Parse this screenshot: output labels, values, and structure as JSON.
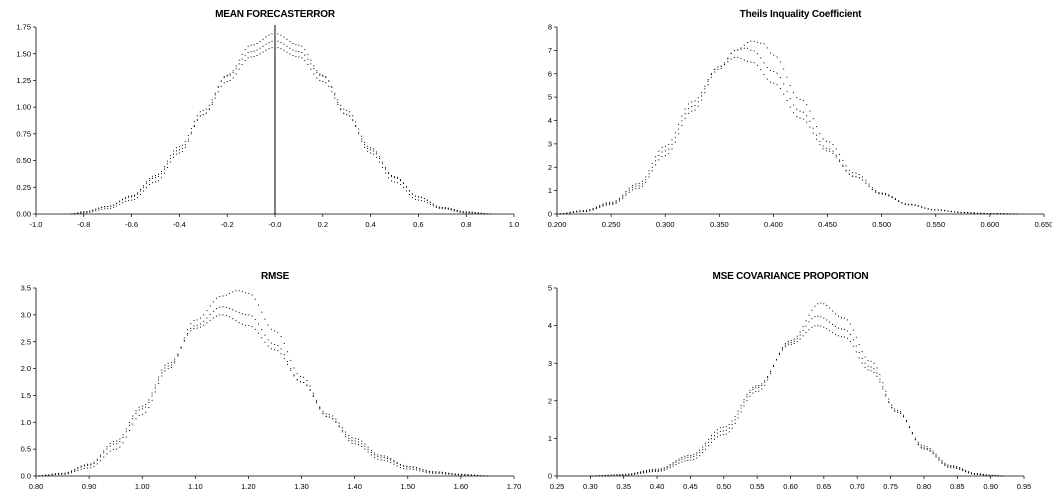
{
  "chart_data": [
    {
      "type": "line",
      "title": "MEAN FORECASTERROR",
      "xlabel": "",
      "ylabel": "",
      "xlim": [
        -1.0,
        1.0
      ],
      "ylim": [
        0,
        1.75
      ],
      "x_ticks": [
        "-1.0",
        "-0.8",
        "-0.6",
        "-0.4",
        "-0.2",
        "-0.0",
        "0.2",
        "0.4",
        "0.6",
        "0.8",
        "1.0"
      ],
      "x_tick_values": [
        -1.0,
        -0.8,
        -0.6,
        -0.4,
        -0.2,
        0.0,
        0.2,
        0.4,
        0.6,
        0.8,
        1.0
      ],
      "y_ticks": [
        "0.00",
        "0.25",
        "0.50",
        "0.75",
        "1.00",
        "1.25",
        "1.50",
        "1.75"
      ],
      "y_tick_values": [
        0,
        0.25,
        0.5,
        0.75,
        1.0,
        1.25,
        1.5,
        1.75
      ],
      "vline": 0.0,
      "line_style": "dotted",
      "series": [
        {
          "x": [
            -0.85,
            -0.8,
            -0.7,
            -0.6,
            -0.5,
            -0.4,
            -0.3,
            -0.2,
            -0.1,
            0.0,
            0.1,
            0.2,
            0.3,
            0.4,
            0.5,
            0.6,
            0.7,
            0.8,
            0.9
          ],
          "values": [
            0.0,
            0.02,
            0.07,
            0.16,
            0.34,
            0.6,
            0.93,
            1.24,
            1.47,
            1.56,
            1.47,
            1.24,
            0.93,
            0.6,
            0.34,
            0.16,
            0.06,
            0.02,
            0.0
          ]
        },
        {
          "x": [
            -0.85,
            -0.8,
            -0.7,
            -0.6,
            -0.5,
            -0.4,
            -0.3,
            -0.2,
            -0.1,
            0.0,
            0.1,
            0.2,
            0.3,
            0.4,
            0.5,
            0.6,
            0.7,
            0.8,
            0.9
          ],
          "values": [
            0.0,
            0.02,
            0.07,
            0.17,
            0.36,
            0.63,
            0.97,
            1.29,
            1.52,
            1.62,
            1.52,
            1.29,
            0.97,
            0.62,
            0.35,
            0.16,
            0.06,
            0.02,
            0.0
          ]
        },
        {
          "x": [
            -0.85,
            -0.8,
            -0.7,
            -0.6,
            -0.5,
            -0.4,
            -0.3,
            -0.2,
            -0.1,
            0.0,
            0.1,
            0.2,
            0.3,
            0.4,
            0.5,
            0.6,
            0.7,
            0.8,
            0.9
          ],
          "values": [
            0.0,
            0.01,
            0.05,
            0.13,
            0.3,
            0.57,
            0.93,
            1.3,
            1.58,
            1.69,
            1.58,
            1.3,
            0.93,
            0.57,
            0.3,
            0.13,
            0.05,
            0.01,
            0.0
          ]
        }
      ]
    },
    {
      "type": "line",
      "title": "Theils Inquality Coefficient",
      "xlabel": "",
      "ylabel": "",
      "xlim": [
        0.2,
        0.65
      ],
      "ylim": [
        0,
        8
      ],
      "x_ticks": [
        "0.200",
        "0.250",
        "0.300",
        "0.350",
        "0.400",
        "0.450",
        "0.500",
        "0.550",
        "0.600",
        "0.650"
      ],
      "x_tick_values": [
        0.2,
        0.25,
        0.3,
        0.35,
        0.4,
        0.45,
        0.5,
        0.55,
        0.6,
        0.65
      ],
      "y_ticks": [
        "0",
        "1",
        "2",
        "3",
        "4",
        "5",
        "6",
        "7",
        "8"
      ],
      "y_tick_values": [
        0,
        1,
        2,
        3,
        4,
        5,
        6,
        7,
        8
      ],
      "line_style": "dotted",
      "series": [
        {
          "x": [
            0.2,
            0.225,
            0.25,
            0.275,
            0.3,
            0.325,
            0.35,
            0.365,
            0.38,
            0.4,
            0.425,
            0.45,
            0.475,
            0.5,
            0.525,
            0.55,
            0.575,
            0.6,
            0.625
          ],
          "values": [
            0.0,
            0.15,
            0.5,
            1.3,
            2.9,
            4.8,
            6.3,
            6.7,
            6.5,
            5.6,
            4.1,
            2.7,
            1.6,
            0.85,
            0.4,
            0.17,
            0.06,
            0.02,
            0.0
          ]
        },
        {
          "x": [
            0.2,
            0.225,
            0.25,
            0.275,
            0.3,
            0.325,
            0.35,
            0.365,
            0.375,
            0.38,
            0.4,
            0.425,
            0.45,
            0.475,
            0.5,
            0.525,
            0.55,
            0.575,
            0.6,
            0.625
          ],
          "values": [
            0.0,
            0.12,
            0.45,
            1.2,
            2.7,
            4.6,
            6.3,
            7.0,
            7.1,
            7.0,
            6.1,
            4.4,
            2.8,
            1.6,
            0.85,
            0.4,
            0.17,
            0.06,
            0.02,
            0.0
          ]
        },
        {
          "x": [
            0.2,
            0.225,
            0.25,
            0.275,
            0.3,
            0.325,
            0.35,
            0.365,
            0.38,
            0.39,
            0.4,
            0.425,
            0.45,
            0.475,
            0.5,
            0.525,
            0.55,
            0.575,
            0.6,
            0.625
          ],
          "values": [
            0.0,
            0.1,
            0.4,
            1.1,
            2.5,
            4.4,
            6.2,
            7.0,
            7.4,
            7.3,
            6.8,
            4.9,
            3.1,
            1.75,
            0.9,
            0.42,
            0.18,
            0.07,
            0.02,
            0.0
          ]
        }
      ]
    },
    {
      "type": "line",
      "title": "RMSE",
      "xlabel": "",
      "ylabel": "",
      "xlim": [
        0.8,
        1.7
      ],
      "ylim": [
        0,
        3.5
      ],
      "x_ticks": [
        "0.80",
        "0.90",
        "1.00",
        "1.10",
        "1.20",
        "1.30",
        "1.40",
        "1.50",
        "1.60",
        "1.70"
      ],
      "x_tick_values": [
        0.8,
        0.9,
        1.0,
        1.1,
        1.2,
        1.3,
        1.4,
        1.5,
        1.6,
        1.7
      ],
      "y_ticks": [
        "0.0",
        "0.5",
        "1.0",
        "1.5",
        "2.0",
        "2.5",
        "3.0",
        "3.5"
      ],
      "y_tick_values": [
        0,
        0.5,
        1.0,
        1.5,
        2.0,
        2.5,
        3.0,
        3.5
      ],
      "line_style": "dotted",
      "series": [
        {
          "x": [
            0.8,
            0.85,
            0.9,
            0.95,
            1.0,
            1.05,
            1.1,
            1.15,
            1.2,
            1.25,
            1.3,
            1.35,
            1.4,
            1.45,
            1.5,
            1.55,
            1.6,
            1.65
          ],
          "values": [
            0.0,
            0.05,
            0.22,
            0.65,
            1.3,
            2.1,
            2.75,
            3.0,
            2.8,
            2.35,
            1.75,
            1.15,
            0.7,
            0.38,
            0.18,
            0.08,
            0.03,
            0.0
          ]
        },
        {
          "x": [
            0.8,
            0.85,
            0.9,
            0.95,
            1.0,
            1.05,
            1.1,
            1.15,
            1.2,
            1.25,
            1.3,
            1.35,
            1.4,
            1.45,
            1.5,
            1.55,
            1.6,
            1.65
          ],
          "values": [
            0.0,
            0.04,
            0.2,
            0.6,
            1.25,
            2.05,
            2.8,
            3.15,
            3.0,
            2.45,
            1.75,
            1.1,
            0.65,
            0.35,
            0.17,
            0.07,
            0.03,
            0.0
          ]
        },
        {
          "x": [
            0.8,
            0.85,
            0.9,
            0.95,
            1.0,
            1.05,
            1.1,
            1.15,
            1.18,
            1.2,
            1.25,
            1.3,
            1.35,
            1.4,
            1.45,
            1.5,
            1.55,
            1.6,
            1.65
          ],
          "values": [
            0.0,
            0.03,
            0.15,
            0.5,
            1.15,
            2.0,
            2.9,
            3.35,
            3.45,
            3.4,
            2.7,
            1.85,
            1.1,
            0.6,
            0.3,
            0.13,
            0.05,
            0.02,
            0.0
          ]
        }
      ]
    },
    {
      "type": "line",
      "title": "MSE COVARIANCE PROPORTION",
      "xlabel": "",
      "ylabel": "",
      "xlim": [
        0.25,
        0.95
      ],
      "ylim": [
        0,
        5
      ],
      "x_ticks": [
        "0.25",
        "0.30",
        "0.35",
        "0.40",
        "0.45",
        "0.50",
        "0.55",
        "0.60",
        "0.65",
        "0.70",
        "0.75",
        "0.80",
        "0.85",
        "0.90",
        "0.95"
      ],
      "x_tick_values": [
        0.25,
        0.3,
        0.35,
        0.4,
        0.45,
        0.5,
        0.55,
        0.6,
        0.65,
        0.7,
        0.75,
        0.8,
        0.85,
        0.9,
        0.95
      ],
      "y_ticks": [
        "0",
        "1",
        "2",
        "3",
        "4",
        "5"
      ],
      "y_tick_values": [
        0,
        1,
        2,
        3,
        4,
        5
      ],
      "line_style": "dotted",
      "series": [
        {
          "x": [
            0.3,
            0.35,
            0.4,
            0.45,
            0.5,
            0.55,
            0.6,
            0.64,
            0.68,
            0.72,
            0.76,
            0.8,
            0.84,
            0.88,
            0.9,
            0.92
          ],
          "values": [
            0.0,
            0.04,
            0.18,
            0.55,
            1.3,
            2.4,
            3.5,
            4.0,
            3.7,
            2.8,
            1.7,
            0.8,
            0.28,
            0.06,
            0.02,
            0.0
          ]
        },
        {
          "x": [
            0.3,
            0.35,
            0.4,
            0.45,
            0.5,
            0.55,
            0.6,
            0.64,
            0.68,
            0.72,
            0.76,
            0.8,
            0.84,
            0.88,
            0.9,
            0.92
          ],
          "values": [
            0.0,
            0.03,
            0.15,
            0.5,
            1.2,
            2.35,
            3.55,
            4.25,
            3.9,
            2.9,
            1.7,
            0.75,
            0.25,
            0.05,
            0.02,
            0.0
          ]
        },
        {
          "x": [
            0.3,
            0.35,
            0.4,
            0.45,
            0.5,
            0.55,
            0.6,
            0.645,
            0.68,
            0.72,
            0.76,
            0.8,
            0.84,
            0.88,
            0.9,
            0.92
          ],
          "values": [
            0.0,
            0.02,
            0.12,
            0.42,
            1.1,
            2.25,
            3.6,
            4.6,
            4.2,
            3.05,
            1.75,
            0.72,
            0.22,
            0.04,
            0.01,
            0.0
          ]
        }
      ]
    }
  ]
}
